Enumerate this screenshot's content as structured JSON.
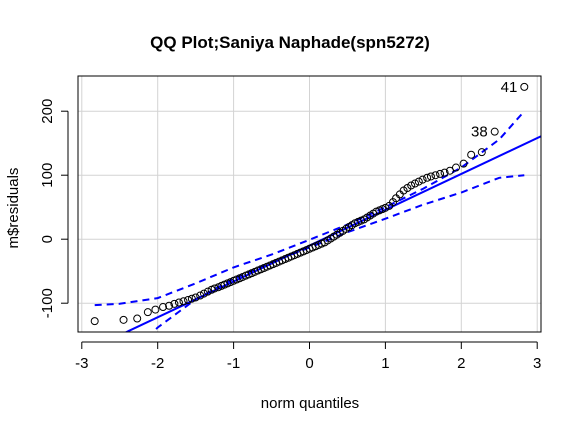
{
  "chart_data": {
    "type": "scatter",
    "title": "QQ Plot;Saniya Naphade(spn5272)",
    "xlabel": "norm quantiles",
    "ylabel": "m$residuals",
    "xlim": [
      -3.05,
      3.05
    ],
    "ylim": [
      -145,
      255
    ],
    "xticks": [
      -3,
      -2,
      -1,
      0,
      1,
      2,
      3
    ],
    "xtick_labels": [
      "-3",
      "-2",
      "-1",
      "0",
      "1",
      "2",
      "3"
    ],
    "yticks": [
      -100,
      0,
      100,
      200
    ],
    "ytick_labels": [
      "-100",
      "0",
      "100",
      "200"
    ],
    "grid": true,
    "colors": {
      "points": "#000000",
      "envelope": "#0000ff",
      "grid": "#d3d3d3",
      "frame": "#000000"
    },
    "points": [
      [
        -2.83,
        -128
      ],
      [
        -2.45,
        -126
      ],
      [
        -2.27,
        -124
      ],
      [
        -2.13,
        -114
      ],
      [
        -2.03,
        -110
      ],
      [
        -1.93,
        -106
      ],
      [
        -1.85,
        -104
      ],
      [
        -1.78,
        -101
      ],
      [
        -1.72,
        -99
      ],
      [
        -1.66,
        -97
      ],
      [
        -1.6,
        -95
      ],
      [
        -1.55,
        -93
      ],
      [
        -1.5,
        -91
      ],
      [
        -1.44,
        -88
      ],
      [
        -1.39,
        -85
      ],
      [
        -1.34,
        -82
      ],
      [
        -1.29,
        -79
      ],
      [
        -1.25,
        -77
      ],
      [
        -1.2,
        -75
      ],
      [
        -1.16,
        -73
      ],
      [
        -1.12,
        -71
      ],
      [
        -1.08,
        -69
      ],
      [
        -1.04,
        -67
      ],
      [
        -1.0,
        -65
      ],
      [
        -0.96,
        -63
      ],
      [
        -0.92,
        -61
      ],
      [
        -0.88,
        -59
      ],
      [
        -0.84,
        -57
      ],
      [
        -0.8,
        -55
      ],
      [
        -0.76,
        -53
      ],
      [
        -0.72,
        -51
      ],
      [
        -0.68,
        -49
      ],
      [
        -0.64,
        -47
      ],
      [
        -0.6,
        -45
      ],
      [
        -0.56,
        -43
      ],
      [
        -0.52,
        -41
      ],
      [
        -0.48,
        -39
      ],
      [
        -0.44,
        -37
      ],
      [
        -0.4,
        -35
      ],
      [
        -0.36,
        -33
      ],
      [
        -0.32,
        -31
      ],
      [
        -0.28,
        -29
      ],
      [
        -0.24,
        -27
      ],
      [
        -0.2,
        -25
      ],
      [
        -0.16,
        -23
      ],
      [
        -0.12,
        -21
      ],
      [
        -0.08,
        -19
      ],
      [
        -0.04,
        -17
      ],
      [
        0.0,
        -15
      ],
      [
        0.04,
        -13
      ],
      [
        0.08,
        -11
      ],
      [
        0.12,
        -9
      ],
      [
        0.16,
        -7
      ],
      [
        0.2,
        -5
      ],
      [
        0.24,
        -2
      ],
      [
        0.28,
        1
      ],
      [
        0.32,
        4
      ],
      [
        0.36,
        7
      ],
      [
        0.4,
        10
      ],
      [
        0.44,
        13
      ],
      [
        0.48,
        16
      ],
      [
        0.52,
        19
      ],
      [
        0.56,
        22
      ],
      [
        0.6,
        25
      ],
      [
        0.64,
        27
      ],
      [
        0.68,
        29
      ],
      [
        0.72,
        31
      ],
      [
        0.76,
        34
      ],
      [
        0.8,
        37
      ],
      [
        0.84,
        40
      ],
      [
        0.88,
        43
      ],
      [
        0.92,
        45
      ],
      [
        0.96,
        47
      ],
      [
        1.0,
        49
      ],
      [
        1.05,
        52
      ],
      [
        1.1,
        58
      ],
      [
        1.14,
        64
      ],
      [
        1.19,
        70
      ],
      [
        1.24,
        76
      ],
      [
        1.29,
        80
      ],
      [
        1.34,
        84
      ],
      [
        1.39,
        87
      ],
      [
        1.44,
        90
      ],
      [
        1.49,
        93
      ],
      [
        1.55,
        96
      ],
      [
        1.6,
        98
      ],
      [
        1.66,
        100
      ],
      [
        1.72,
        102
      ],
      [
        1.78,
        104
      ],
      [
        1.85,
        107
      ],
      [
        1.93,
        112
      ],
      [
        2.03,
        118
      ],
      [
        2.13,
        132
      ],
      [
        2.27,
        136
      ],
      [
        2.44,
        168
      ],
      [
        2.83,
        238
      ]
    ],
    "reference_line": {
      "slope": 56,
      "intercept": -10,
      "color": "#0000ff"
    },
    "envelope_upper": [
      [
        -2.83,
        -103
      ],
      [
        -2.5,
        -101
      ],
      [
        -2.0,
        -92
      ],
      [
        -1.5,
        -69
      ],
      [
        -1.0,
        -44
      ],
      [
        -0.5,
        -24
      ],
      [
        0.0,
        -1
      ],
      [
        0.5,
        23
      ],
      [
        1.0,
        50
      ],
      [
        1.5,
        79
      ],
      [
        2.0,
        112
      ],
      [
        2.5,
        156
      ],
      [
        2.83,
        200
      ]
    ],
    "envelope_lower": [
      [
        -2.83,
        -230
      ],
      [
        -2.5,
        -195
      ],
      [
        -2.0,
        -138
      ],
      [
        -1.5,
        -94
      ],
      [
        -1.0,
        -62
      ],
      [
        -0.5,
        -36
      ],
      [
        0.0,
        -13
      ],
      [
        0.5,
        11
      ],
      [
        1.0,
        32
      ],
      [
        1.5,
        54
      ],
      [
        2.0,
        73
      ],
      [
        2.5,
        96
      ],
      [
        2.83,
        100
      ]
    ],
    "annotations": [
      {
        "text": "41",
        "x": 2.83,
        "y": 238
      },
      {
        "text": "38",
        "x": 2.44,
        "y": 168
      }
    ]
  }
}
